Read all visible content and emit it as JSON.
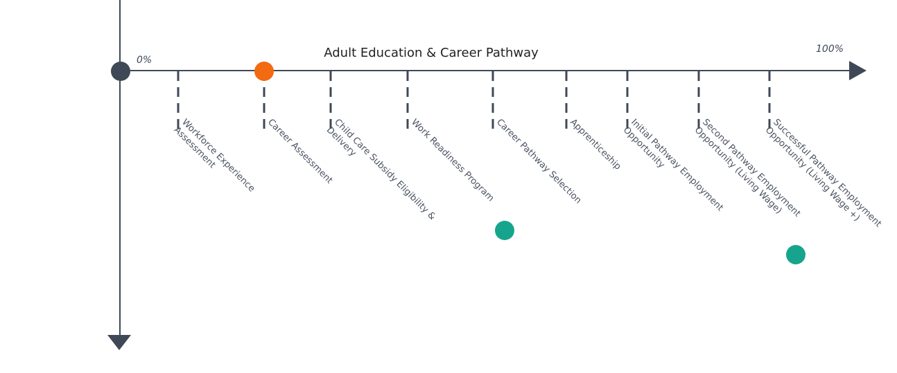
{
  "title": "Adult Education & Career Pathway",
  "start_label": "0%",
  "end_label": "100%",
  "milestones": [
    {
      "lines": [
        "Workforce Experience",
        "Assessment"
      ]
    },
    {
      "lines": [
        "Career Assessment"
      ]
    },
    {
      "lines": [
        "Child Care Subsidy Eligibility &",
        "Delivery"
      ]
    },
    {
      "lines": [
        "Work Readiness Program"
      ]
    },
    {
      "lines": [
        "Career Pathway Selection"
      ]
    },
    {
      "lines": [
        "Apprenticeship"
      ]
    },
    {
      "lines": [
        "Initial Pathway Employment",
        "Opportunity"
      ]
    },
    {
      "lines": [
        "Second Pathway Employment",
        "Opportunity (Living Wage)"
      ]
    },
    {
      "lines": [
        "Successful Pathway Employment",
        "Opportunity (Living Wage +)"
      ]
    }
  ]
}
